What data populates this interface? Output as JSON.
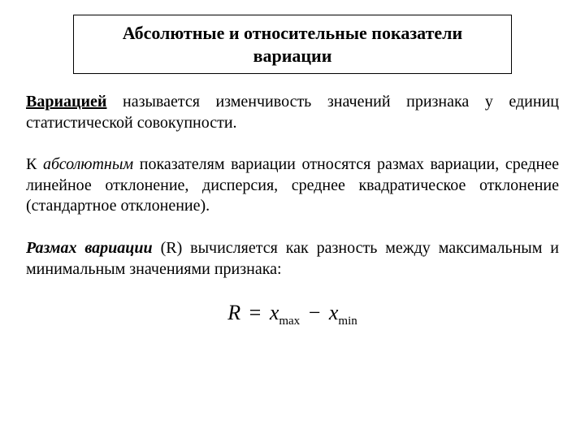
{
  "title": {
    "line1": "Абсолютные и относительные показатели",
    "line2": "вариации"
  },
  "paragraph1": {
    "term": "Вариацией",
    "rest": " называется изменчивость значений признака у единиц статистической совокупности."
  },
  "paragraph2": {
    "prefix": "К ",
    "term": "абсолютным",
    "rest": " показателям вариации относятся размах вариации, среднее линейное отклонение, дисперсия, среднее квадратическое отклонение (стандартное отклонение)."
  },
  "paragraph3": {
    "term": "Размах вариации",
    "symbol": " (R) ",
    "rest": "вычисляется как разность между максимальным и минимальным значениями признака:"
  },
  "formula": {
    "R": "R",
    "eq": "=",
    "x1": "x",
    "sub1": "max",
    "minus": "−",
    "x2": "x",
    "sub2": "min"
  },
  "style": {
    "title_fontsize": 22,
    "body_fontsize": 20,
    "formula_fontsize": 26,
    "sub_fontsize": 15,
    "text_color": "#000000",
    "background_color": "#ffffff",
    "border_color": "#000000",
    "font_family": "Times New Roman"
  }
}
